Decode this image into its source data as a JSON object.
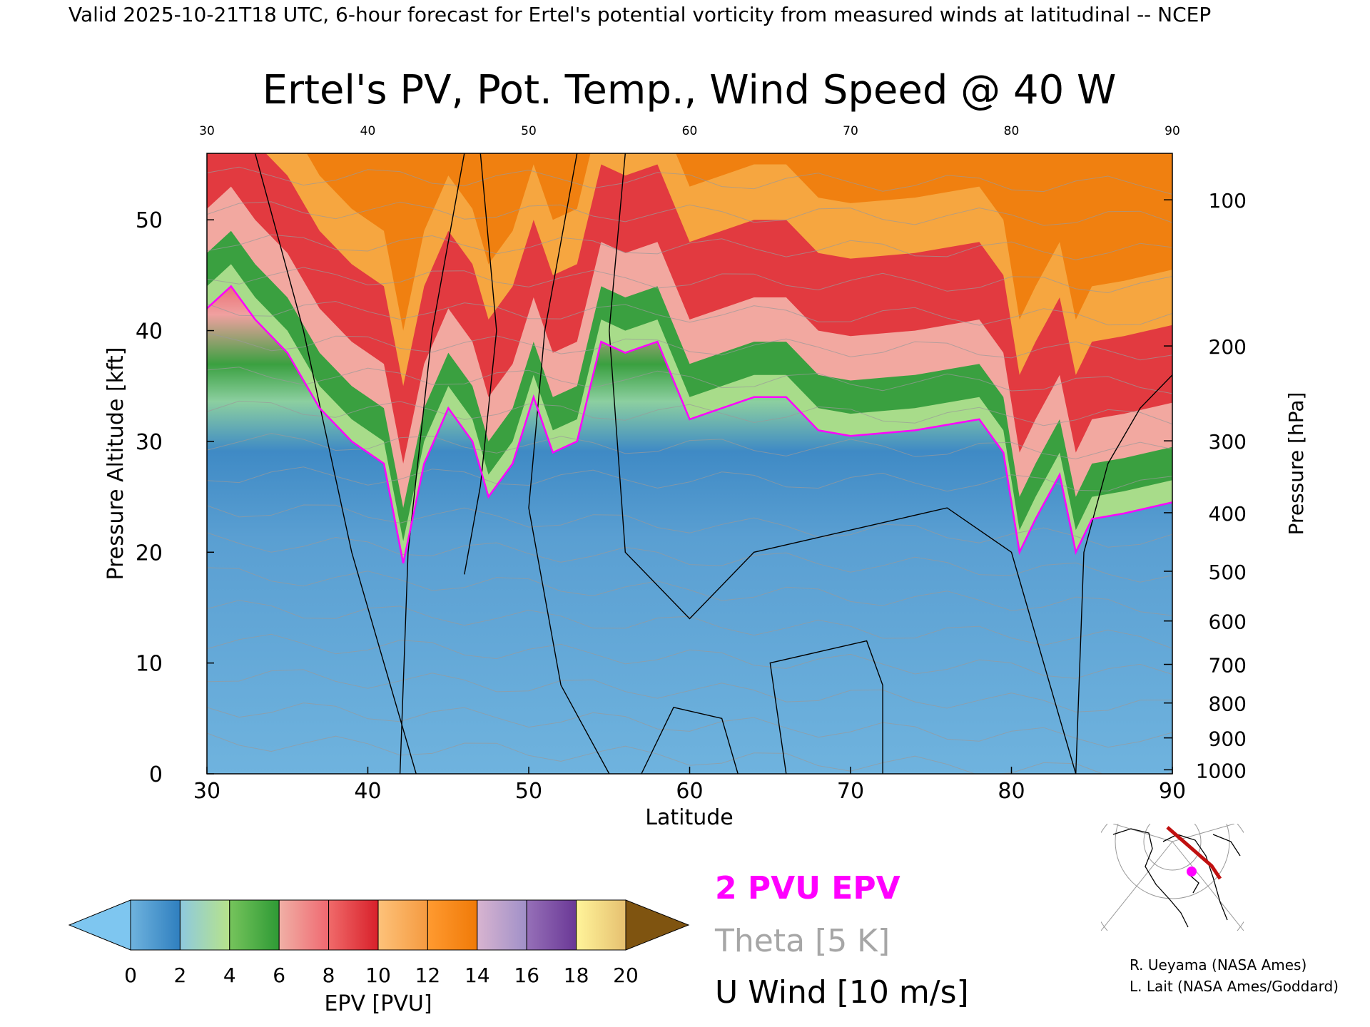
{
  "header": {
    "valid_line": "Valid 2025-10-21T18 UTC, 6-hour forecast for Ertel's potential vorticity from measured winds at latitudinal -- NCEP",
    "title": "Ertel's PV, Pot. Temp., Wind Speed @ 40 W"
  },
  "chart_data": {
    "type": "heatmap",
    "title": "Ertel's PV, Pot. Temp., Wind Speed @ 40 W",
    "xlabel": "Latitude",
    "ylabel": "Pressure Altitude [kft]",
    "y2label": "Pressure [hPa]",
    "xlim": [
      30,
      90
    ],
    "ylim": [
      0,
      56
    ],
    "x_ticks": [
      30,
      40,
      50,
      60,
      70,
      80,
      90
    ],
    "x_tick_labels": [
      "30",
      "40",
      "50",
      "60",
      "70",
      "80",
      "90"
    ],
    "top_tick_labels": [
      "30",
      "40",
      "50",
      "60",
      "70",
      "80",
      "90"
    ],
    "y_ticks": [
      0,
      10,
      20,
      30,
      40,
      50
    ],
    "y_tick_labels": [
      "0",
      "10",
      "20",
      "30",
      "40",
      "50"
    ],
    "pressure_ticks_hPa": [
      100,
      200,
      300,
      400,
      500,
      600,
      700,
      800,
      900,
      1000
    ],
    "pressure_tick_labels": [
      "100",
      "200",
      "300",
      "400",
      "500",
      "600",
      "700",
      "800",
      "900",
      "1000"
    ],
    "tropopause_2pvu_kft": [
      {
        "lat": 30,
        "alt": 42
      },
      {
        "lat": 31.5,
        "alt": 44
      },
      {
        "lat": 33,
        "alt": 41
      },
      {
        "lat": 35,
        "alt": 38
      },
      {
        "lat": 37,
        "alt": 33
      },
      {
        "lat": 39,
        "alt": 30
      },
      {
        "lat": 41,
        "alt": 28
      },
      {
        "lat": 42.2,
        "alt": 19
      },
      {
        "lat": 43.5,
        "alt": 28
      },
      {
        "lat": 45,
        "alt": 33
      },
      {
        "lat": 46.5,
        "alt": 30
      },
      {
        "lat": 47.5,
        "alt": 25
      },
      {
        "lat": 49,
        "alt": 28
      },
      {
        "lat": 50.3,
        "alt": 34
      },
      {
        "lat": 51.5,
        "alt": 29
      },
      {
        "lat": 53,
        "alt": 30
      },
      {
        "lat": 54.5,
        "alt": 39
      },
      {
        "lat": 56,
        "alt": 38
      },
      {
        "lat": 58,
        "alt": 39
      },
      {
        "lat": 60,
        "alt": 32
      },
      {
        "lat": 62,
        "alt": 33
      },
      {
        "lat": 64,
        "alt": 34
      },
      {
        "lat": 66,
        "alt": 34
      },
      {
        "lat": 68,
        "alt": 31
      },
      {
        "lat": 70,
        "alt": 30.5
      },
      {
        "lat": 74,
        "alt": 31
      },
      {
        "lat": 78,
        "alt": 32
      },
      {
        "lat": 79.5,
        "alt": 29
      },
      {
        "lat": 80.5,
        "alt": 20
      },
      {
        "lat": 81.5,
        "alt": 23
      },
      {
        "lat": 83,
        "alt": 27
      },
      {
        "lat": 84,
        "alt": 20
      },
      {
        "lat": 85,
        "alt": 23
      },
      {
        "lat": 87,
        "alt": 23.5
      },
      {
        "lat": 90,
        "alt": 24.5
      }
    ],
    "colorbar": {
      "label": "EPV [PVU]",
      "ticks": [
        0,
        2,
        4,
        6,
        8,
        10,
        12,
        14,
        16,
        18,
        20
      ],
      "tick_labels": [
        "0",
        "2",
        "4",
        "6",
        "8",
        "10",
        "12",
        "14",
        "16",
        "18",
        "20"
      ],
      "under_color": "#7ec6f0",
      "over_color": "#7f5410",
      "segments": [
        {
          "from": 0,
          "to": 2,
          "colors": [
            "#6fb3de",
            "#2f7fbf"
          ]
        },
        {
          "from": 2,
          "to": 4,
          "colors": [
            "#8ec9df",
            "#b7e38a"
          ]
        },
        {
          "from": 4,
          "to": 6,
          "colors": [
            "#76c45c",
            "#2e9a35"
          ]
        },
        {
          "from": 6,
          "to": 8,
          "colors": [
            "#f0b0a6",
            "#f06870"
          ]
        },
        {
          "from": 8,
          "to": 10,
          "colors": [
            "#f06a6a",
            "#d8202a"
          ]
        },
        {
          "from": 10,
          "to": 12,
          "colors": [
            "#fdc27a",
            "#f59a40"
          ]
        },
        {
          "from": 12,
          "to": 14,
          "colors": [
            "#ff9a30",
            "#f07a08"
          ]
        },
        {
          "from": 14,
          "to": 16,
          "colors": [
            "#d8b4d0",
            "#a090c8"
          ]
        },
        {
          "from": 16,
          "to": 18,
          "colors": [
            "#9670b8",
            "#6a3896"
          ]
        },
        {
          "from": 18,
          "to": 20,
          "colors": [
            "#fff49a",
            "#e6c070"
          ]
        }
      ]
    },
    "legend": {
      "pvu": "2 PVU EPV",
      "theta": "Theta [5 K]",
      "uwind": "U Wind [10 m/s]",
      "colors": {
        "pvu": "#ff00ff",
        "theta": "#a6a6a6",
        "uwind": "#000000"
      }
    }
  },
  "credits": {
    "line1": "R. Ueyama (NASA Ames)",
    "line2": "L. Lait (NASA Ames/Goddard)"
  }
}
